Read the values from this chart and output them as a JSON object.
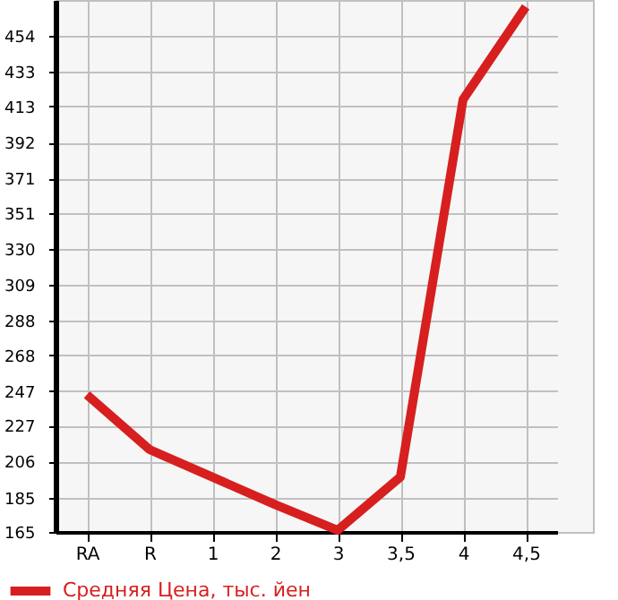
{
  "chart_data": {
    "type": "line",
    "categories": [
      "RA",
      "R",
      "1",
      "2",
      "3",
      "3,5",
      "4",
      "4,5"
    ],
    "series": [
      {
        "name": "Средняя Цена, тыс. йен",
        "color": "#d71f1f",
        "values": [
          245,
          213,
          197,
          181,
          166,
          197,
          417,
          471
        ]
      }
    ],
    "ylim": [
      165,
      475
    ],
    "yticks": [
      165,
      185,
      206,
      227,
      247,
      268,
      288,
      309,
      330,
      351,
      371,
      392,
      413,
      433,
      454
    ],
    "grid": true,
    "legend": "bottom left",
    "marker": "none",
    "line_style": "solid"
  }
}
